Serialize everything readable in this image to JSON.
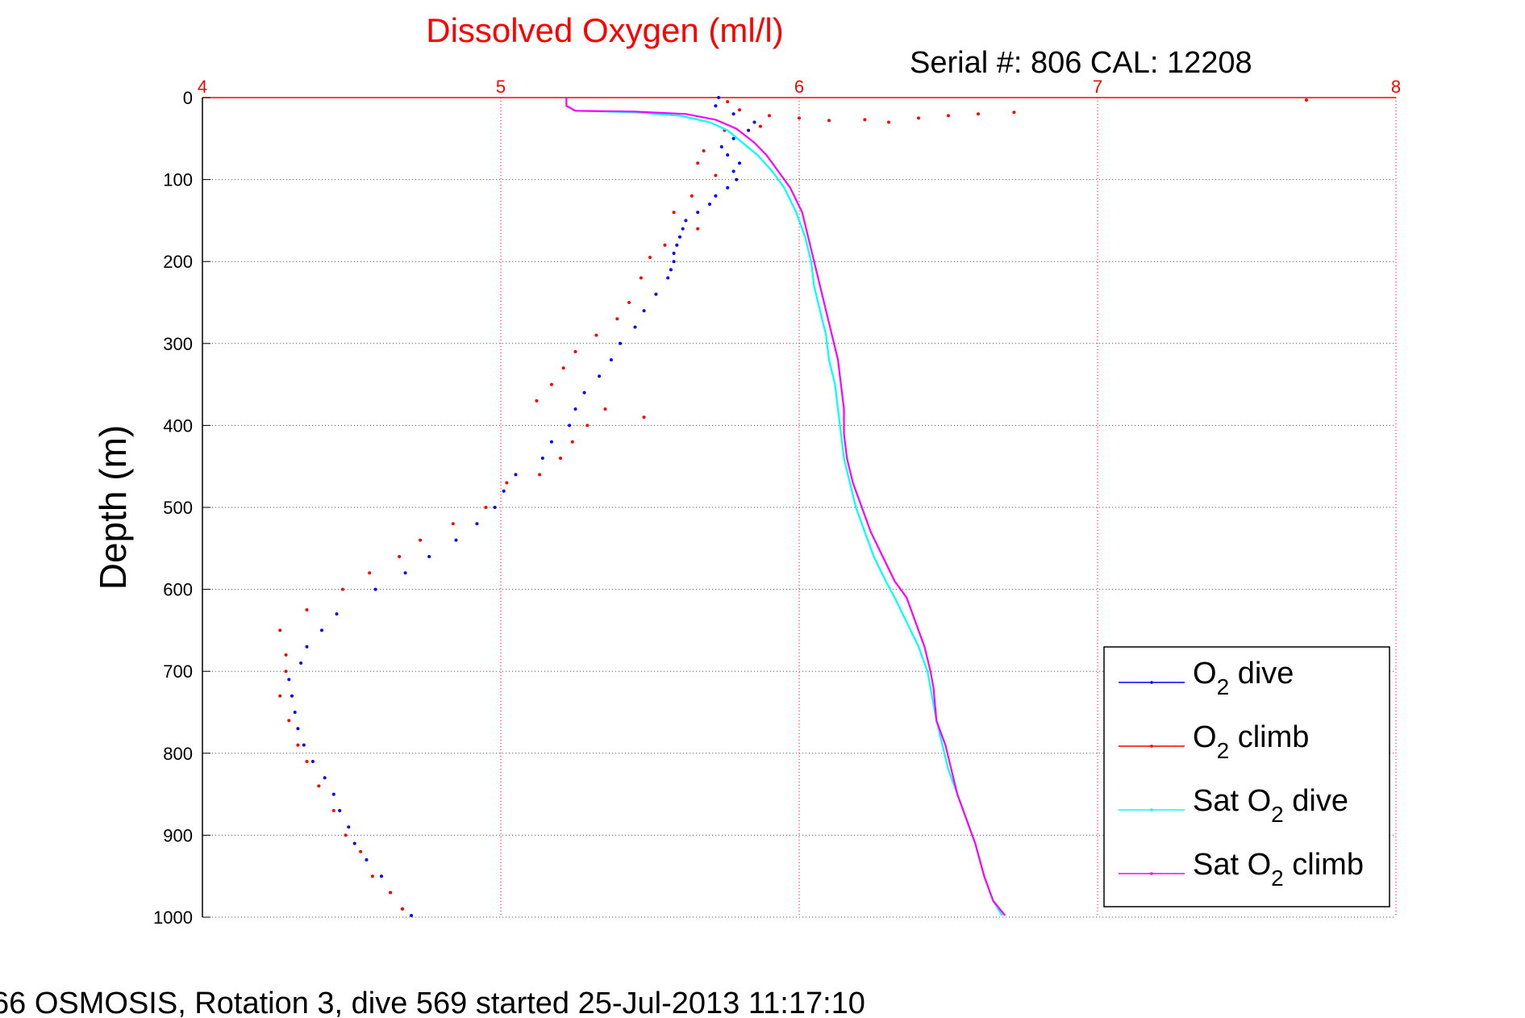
{
  "chart_data": {
    "type": "scatter",
    "title": "Dissolved Oxygen (ml/l)",
    "subtitle": "Serial #: 806  CAL: 12208",
    "caption": "66 OSMOSIS, Rotation 3, dive 569 started 25-Jul-2013 11:17:10",
    "ylabel": "Depth (m)",
    "xlabel": "",
    "xlim": [
      4,
      8
    ],
    "ylim": [
      0,
      1000
    ],
    "y_reversed": true,
    "x_ticks": [
      "4",
      "5",
      "6",
      "7",
      "8"
    ],
    "y_ticks": [
      "0",
      "100",
      "200",
      "300",
      "400",
      "500",
      "600",
      "700",
      "800",
      "900",
      "1000"
    ],
    "grid": true,
    "legend_position": "bottom-right",
    "colors": {
      "title": "#ff0000",
      "o2_dive": "#0000ff",
      "o2_climb": "#ff0000",
      "sat_dive": "#00ffff",
      "sat_climb": "#ff00ff"
    },
    "legend": [
      {
        "key": "o2_dive",
        "prefix": "O",
        "sub": "2",
        "suffix": " dive"
      },
      {
        "key": "o2_climb",
        "prefix": "O",
        "sub": "2",
        "suffix": " climb"
      },
      {
        "key": "sat_dive",
        "prefix": "Sat O",
        "sub": "2",
        "suffix": " dive"
      },
      {
        "key": "sat_climb",
        "prefix": "Sat O",
        "sub": "2",
        "suffix": " climb"
      }
    ],
    "series": [
      {
        "name": "O2 dive",
        "key": "o2_dive",
        "style": "dots",
        "points": [
          [
            5.73,
            0
          ],
          [
            5.72,
            10
          ],
          [
            5.78,
            20
          ],
          [
            5.85,
            30
          ],
          [
            5.83,
            40
          ],
          [
            5.78,
            50
          ],
          [
            5.74,
            60
          ],
          [
            5.76,
            70
          ],
          [
            5.8,
            80
          ],
          [
            5.78,
            90
          ],
          [
            5.79,
            100
          ],
          [
            5.76,
            110
          ],
          [
            5.72,
            120
          ],
          [
            5.7,
            130
          ],
          [
            5.66,
            140
          ],
          [
            5.62,
            150
          ],
          [
            5.61,
            160
          ],
          [
            5.6,
            170
          ],
          [
            5.59,
            180
          ],
          [
            5.58,
            190
          ],
          [
            5.58,
            200
          ],
          [
            5.57,
            210
          ],
          [
            5.56,
            220
          ],
          [
            5.52,
            240
          ],
          [
            5.48,
            260
          ],
          [
            5.45,
            280
          ],
          [
            5.4,
            300
          ],
          [
            5.37,
            320
          ],
          [
            5.33,
            340
          ],
          [
            5.28,
            360
          ],
          [
            5.25,
            380
          ],
          [
            5.23,
            400
          ],
          [
            5.17,
            420
          ],
          [
            5.14,
            440
          ],
          [
            5.05,
            460
          ],
          [
            5.01,
            480
          ],
          [
            4.98,
            500
          ],
          [
            4.92,
            520
          ],
          [
            4.85,
            540
          ],
          [
            4.76,
            560
          ],
          [
            4.68,
            580
          ],
          [
            4.58,
            600
          ],
          [
            4.45,
            630
          ],
          [
            4.4,
            650
          ],
          [
            4.35,
            670
          ],
          [
            4.33,
            690
          ],
          [
            4.29,
            710
          ],
          [
            4.3,
            730
          ],
          [
            4.31,
            750
          ],
          [
            4.32,
            770
          ],
          [
            4.34,
            790
          ],
          [
            4.37,
            810
          ],
          [
            4.41,
            830
          ],
          [
            4.44,
            850
          ],
          [
            4.46,
            870
          ],
          [
            4.49,
            890
          ],
          [
            4.51,
            910
          ],
          [
            4.55,
            930
          ],
          [
            4.6,
            950
          ],
          [
            4.63,
            970
          ],
          [
            4.67,
            990
          ],
          [
            4.7,
            998
          ]
        ]
      },
      {
        "name": "O2 climb",
        "key": "o2_climb",
        "style": "dots",
        "points": [
          [
            5.76,
            5
          ],
          [
            5.8,
            15
          ],
          [
            5.9,
            22
          ],
          [
            6.0,
            25
          ],
          [
            6.1,
            28
          ],
          [
            6.22,
            27
          ],
          [
            6.3,
            30
          ],
          [
            6.4,
            25
          ],
          [
            6.5,
            22
          ],
          [
            6.6,
            20
          ],
          [
            6.72,
            18
          ],
          [
            7.7,
            3
          ],
          [
            5.87,
            35
          ],
          [
            5.75,
            40
          ],
          [
            5.68,
            65
          ],
          [
            5.66,
            80
          ],
          [
            5.72,
            95
          ],
          [
            5.64,
            120
          ],
          [
            5.58,
            140
          ],
          [
            5.66,
            160
          ],
          [
            5.55,
            180
          ],
          [
            5.5,
            195
          ],
          [
            5.47,
            220
          ],
          [
            5.43,
            250
          ],
          [
            5.39,
            270
          ],
          [
            5.32,
            290
          ],
          [
            5.25,
            310
          ],
          [
            5.21,
            330
          ],
          [
            5.17,
            350
          ],
          [
            5.12,
            370
          ],
          [
            5.35,
            380
          ],
          [
            5.29,
            400
          ],
          [
            5.48,
            390
          ],
          [
            5.24,
            420
          ],
          [
            5.2,
            440
          ],
          [
            5.13,
            460
          ],
          [
            5.02,
            470
          ],
          [
            4.95,
            500
          ],
          [
            4.84,
            520
          ],
          [
            4.73,
            540
          ],
          [
            4.66,
            560
          ],
          [
            4.56,
            580
          ],
          [
            4.47,
            600
          ],
          [
            4.35,
            625
          ],
          [
            4.26,
            650
          ],
          [
            4.28,
            680
          ],
          [
            4.28,
            700
          ],
          [
            4.26,
            730
          ],
          [
            4.29,
            760
          ],
          [
            4.32,
            790
          ],
          [
            4.35,
            810
          ],
          [
            4.39,
            840
          ],
          [
            4.44,
            870
          ],
          [
            4.48,
            900
          ],
          [
            4.53,
            920
          ],
          [
            4.57,
            950
          ],
          [
            4.63,
            970
          ],
          [
            4.67,
            990
          ]
        ]
      },
      {
        "name": "Sat O2 dive",
        "key": "sat_dive",
        "style": "line",
        "points": [
          [
            5.22,
            0
          ],
          [
            5.22,
            10
          ],
          [
            5.25,
            16
          ],
          [
            5.45,
            18
          ],
          [
            5.6,
            22
          ],
          [
            5.7,
            30
          ],
          [
            5.76,
            40
          ],
          [
            5.81,
            55
          ],
          [
            5.86,
            70
          ],
          [
            5.91,
            90
          ],
          [
            5.95,
            110
          ],
          [
            5.99,
            140
          ],
          [
            6.02,
            170
          ],
          [
            6.04,
            200
          ],
          [
            6.05,
            230
          ],
          [
            6.07,
            260
          ],
          [
            6.09,
            290
          ],
          [
            6.1,
            320
          ],
          [
            6.12,
            350
          ],
          [
            6.13,
            380
          ],
          [
            6.14,
            410
          ],
          [
            6.15,
            440
          ],
          [
            6.17,
            470
          ],
          [
            6.19,
            500
          ],
          [
            6.22,
            530
          ],
          [
            6.25,
            560
          ],
          [
            6.29,
            590
          ],
          [
            6.32,
            610
          ],
          [
            6.36,
            640
          ],
          [
            6.4,
            670
          ],
          [
            6.43,
            700
          ],
          [
            6.44,
            720
          ],
          [
            6.46,
            760
          ],
          [
            6.48,
            790
          ],
          [
            6.5,
            820
          ],
          [
            6.53,
            850
          ],
          [
            6.56,
            880
          ],
          [
            6.59,
            910
          ],
          [
            6.62,
            950
          ],
          [
            6.65,
            980
          ],
          [
            6.68,
            998
          ]
        ]
      },
      {
        "name": "Sat O2 climb",
        "key": "sat_climb",
        "style": "line",
        "points": [
          [
            5.22,
            0
          ],
          [
            5.22,
            10
          ],
          [
            5.25,
            16
          ],
          [
            5.45,
            17
          ],
          [
            5.62,
            20
          ],
          [
            5.72,
            27
          ],
          [
            5.79,
            38
          ],
          [
            5.85,
            55
          ],
          [
            5.89,
            70
          ],
          [
            5.93,
            90
          ],
          [
            5.97,
            110
          ],
          [
            6.01,
            140
          ],
          [
            6.03,
            170
          ],
          [
            6.05,
            200
          ],
          [
            6.07,
            230
          ],
          [
            6.09,
            260
          ],
          [
            6.11,
            290
          ],
          [
            6.13,
            320
          ],
          [
            6.14,
            350
          ],
          [
            6.15,
            380
          ],
          [
            6.15,
            410
          ],
          [
            6.16,
            440
          ],
          [
            6.18,
            470
          ],
          [
            6.21,
            500
          ],
          [
            6.24,
            530
          ],
          [
            6.28,
            560
          ],
          [
            6.32,
            590
          ],
          [
            6.36,
            610
          ],
          [
            6.39,
            640
          ],
          [
            6.42,
            670
          ],
          [
            6.44,
            700
          ],
          [
            6.45,
            720
          ],
          [
            6.46,
            760
          ],
          [
            6.49,
            790
          ],
          [
            6.51,
            820
          ],
          [
            6.53,
            850
          ],
          [
            6.56,
            880
          ],
          [
            6.59,
            910
          ],
          [
            6.62,
            950
          ],
          [
            6.65,
            980
          ],
          [
            6.69,
            998
          ]
        ]
      }
    ]
  }
}
